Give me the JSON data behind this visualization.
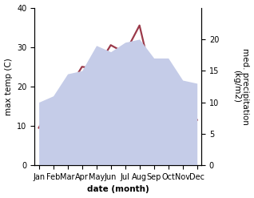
{
  "months": [
    "Jan",
    "Feb",
    "Mar",
    "Apr",
    "May",
    "Jun",
    "Jul",
    "Aug",
    "Sep",
    "Oct",
    "Nov",
    "Dec"
  ],
  "temp": [
    9.5,
    16.5,
    19.0,
    25.0,
    24.5,
    30.5,
    28.5,
    35.5,
    20.0,
    14.0,
    10.0,
    11.5
  ],
  "precip": [
    10.0,
    11.0,
    14.5,
    15.0,
    19.0,
    18.0,
    19.5,
    20.0,
    17.0,
    17.0,
    13.5,
    13.0
  ],
  "temp_color": "#9b3a4a",
  "precip_fill_color": "#c5cce8",
  "ylim_left": [
    0,
    40
  ],
  "ylim_right": [
    0,
    25
  ],
  "right_yticks": [
    0,
    5,
    10,
    15,
    20
  ],
  "left_yticks": [
    0,
    10,
    20,
    30,
    40
  ],
  "ylabel_left": "max temp (C)",
  "ylabel_right": "med. precipitation\n(kg/m2)",
  "xlabel": "date (month)",
  "axis_label_fontsize": 7.5,
  "tick_fontsize": 7,
  "line_width": 1.6,
  "background_color": "#ffffff"
}
